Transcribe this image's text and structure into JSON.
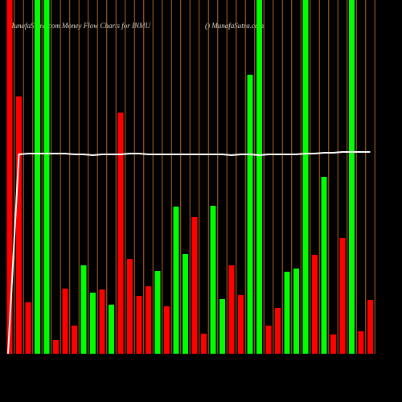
{
  "chart_data": {
    "type": "bar",
    "title": "MunafaSutra.com Money Flow Charts for INMU",
    "subtitle": "() MunafaSutra.com",
    "categories": [
      null,
      null,
      null,
      null,
      null,
      null,
      null,
      null,
      null,
      null,
      null,
      null,
      null,
      null,
      null,
      null,
      null,
      null,
      null,
      null,
      null,
      null,
      null,
      null,
      null,
      null,
      null,
      null,
      null,
      null,
      null,
      null,
      null,
      null,
      null,
      null,
      null,
      null,
      null,
      null
    ],
    "values": [
      440,
      320,
      64,
      440,
      440,
      17,
      81,
      35,
      110,
      76,
      80,
      61,
      300,
      118,
      72,
      84,
      103,
      59,
      183,
      124,
      170,
      25,
      184,
      68,
      110,
      73,
      347,
      440,
      35,
      57,
      102,
      106,
      440,
      123,
      220,
      24,
      144,
      440,
      28,
      67
    ],
    "colors": [
      "#f00",
      "#f00",
      "#f00",
      "#0f0",
      "#0f0",
      "#f00",
      "#f00",
      "#f00",
      "#0f0",
      "#0f0",
      "#f00",
      "#0f0",
      "#f00",
      "#f00",
      "#f00",
      "#f00",
      "#0f0",
      "#f00",
      "#0f0",
      "#0f0",
      "#f00",
      "#f00",
      "#0f0",
      "#0f0",
      "#f00",
      "#f00",
      "#0f0",
      "#0f0",
      "#f00",
      "#f00",
      "#0f0",
      "#0f0",
      "#0f0",
      "#f00",
      "#0f0",
      "#f00",
      "#f00",
      "#0f0",
      "#f00",
      "#f00"
    ],
    "line": {
      "color": "#fff",
      "values": [
        0,
        248,
        249,
        249,
        249,
        249,
        249,
        248,
        248,
        247,
        248,
        248,
        248,
        249,
        249,
        248,
        248,
        248,
        248,
        248,
        248,
        248,
        248,
        248,
        247,
        248,
        248,
        247,
        248,
        248,
        248,
        248,
        249,
        249,
        250,
        250,
        251,
        251,
        251,
        251
      ]
    },
    "ylim": [
      0,
      440
    ],
    "gridline_color": "#b8651b"
  }
}
